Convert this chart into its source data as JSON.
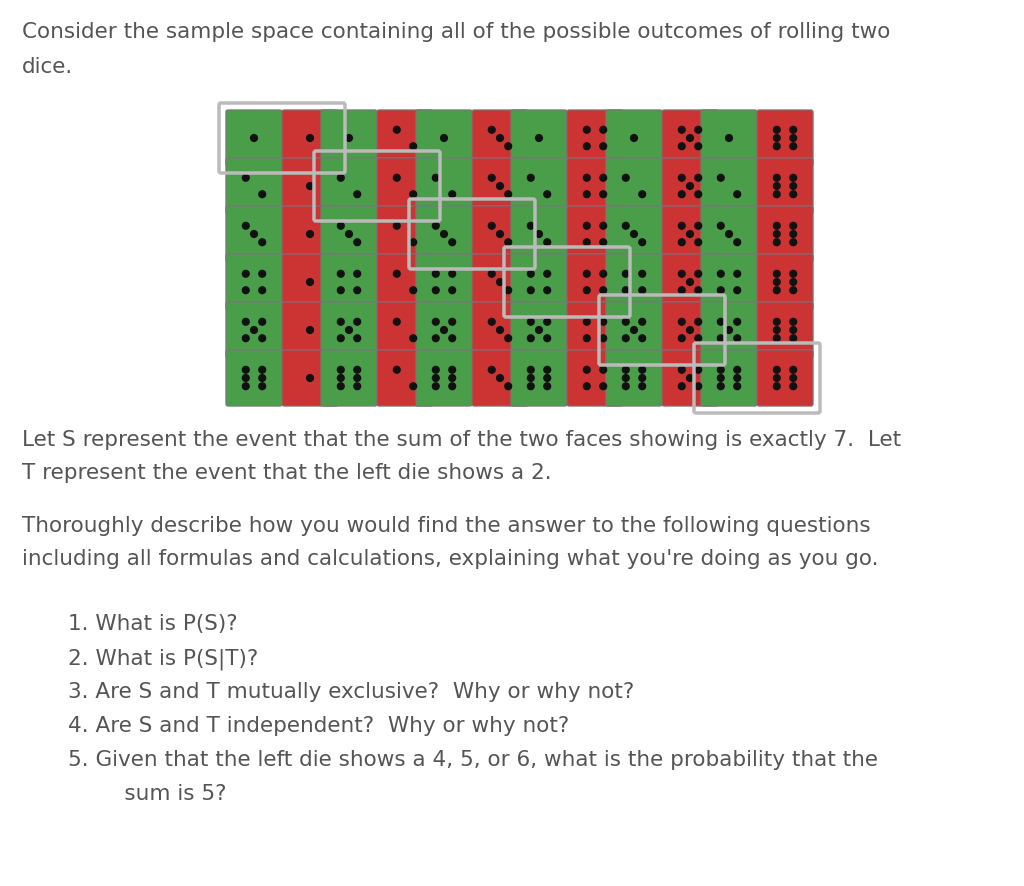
{
  "background_color": "#ffffff",
  "text_color": "#555555",
  "green_die_color": "#4a9e4a",
  "red_die_color": "#cc3333",
  "dot_color": "#111111",
  "highlight_color": "#bbbbbb",
  "paragraph1_lines": [
    "Consider the sample space containing all of the possible outcomes of rolling two",
    "dice."
  ],
  "paragraph2_lines": [
    "Let S represent the event that the sum of the two faces showing is exactly 7.  Let",
    "T represent the event that the left die shows a 2."
  ],
  "paragraph3_lines": [
    "Thoroughly describe how you would find the answer to the following questions",
    "including all formulas and calculations, explaining what you're doing as you go."
  ],
  "items": [
    "1. What is P(S)?",
    "2. What is P(S|T)?",
    "3. Are S and T mutually exclusive?  Why or why not?",
    "4. Are S and T independent?  Why or why not?",
    "5. Given that the left die shows a 4, 5, or 6, what is the probability that the",
    "     sum is 5?"
  ]
}
